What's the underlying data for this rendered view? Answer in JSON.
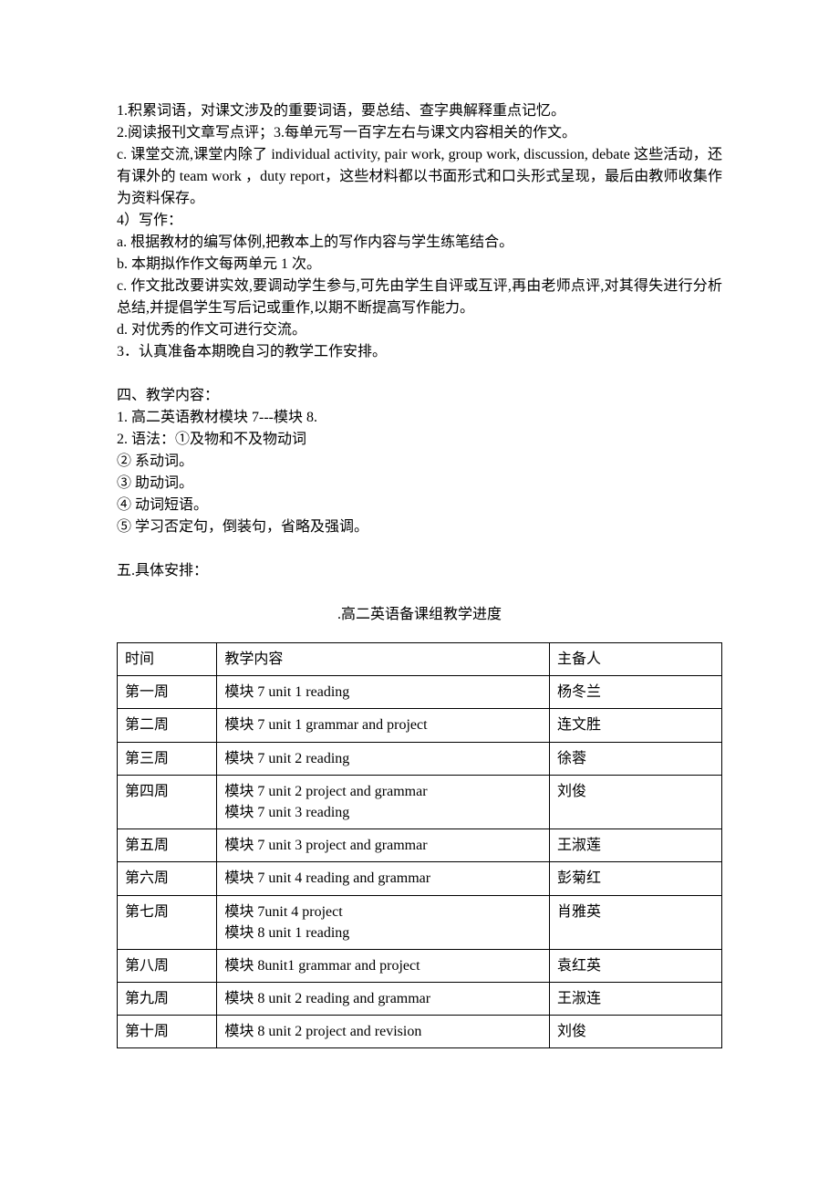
{
  "body": {
    "lines": [
      "1.积累词语，对课文涉及的重要词语，要总结、查字典解释重点记忆。",
      "2.阅读报刊文章写点评；3.每单元写一百字左右与课文内容相关的作文。",
      "c. 课堂交流,课堂内除了 individual activity, pair work, group work, discussion, debate 这些活动，还有课外的 team work ，duty report，这些材料都以书面形式和口头形式呈现，最后由教师收集作为资料保存。",
      "4）写作：",
      "a.  根据教材的编写体例,把教本上的写作内容与学生练笔结合。",
      "b.  本期拟作作文每两单元 1 次。",
      "c.  作文批改要讲实效,要调动学生参与,可先由学生自评或互评,再由老师点评,对其得失进行分析总结,并提倡学生写后记或重作,以期不断提高写作能力。",
      "d.  对优秀的作文可进行交流。",
      "3．认真准备本期晚自习的教学工作安排。"
    ],
    "section4_heading": "四、教学内容：",
    "section4_lines": [
      "1.  高二英语教材模块 7---模块 8.",
      "2.  语法：①及物和不及物动词",
      "②  系动词。",
      "③  助动词。",
      "④  动词短语。",
      "⑤  学习否定句，倒装句，省略及强调。"
    ],
    "section5_heading": "五.具体安排："
  },
  "table": {
    "title": ".高二英语备课组教学进度",
    "headers": [
      "时间",
      "教学内容",
      "主备人"
    ],
    "rows": [
      {
        "time": "第一周",
        "content": "模块 7 unit 1 reading",
        "person": "杨冬兰"
      },
      {
        "time": "第二周",
        "content": "模块 7 unit 1 grammar and project",
        "person": "连文胜"
      },
      {
        "time": "第三周",
        "content": "模块 7 unit 2 reading",
        "person": "徐蓉"
      },
      {
        "time": "第四周",
        "content": "模块 7 unit 2    project and grammar\n模块 7 unit 3    reading",
        "person": "刘俊"
      },
      {
        "time": "第五周",
        "content": "模块 7 unit 3 project and grammar",
        "person": "王淑莲"
      },
      {
        "time": "第六周",
        "content": "模块 7 unit 4 reading and grammar",
        "person": "彭菊红"
      },
      {
        "time": "第七周",
        "content": "模块 7unit 4 project\n模块 8 unit 1    reading",
        "person": "肖雅英"
      },
      {
        "time": "第八周",
        "content": "模块 8unit1 grammar and    project",
        "person": "袁红英"
      },
      {
        "time": "第九周",
        "content": "模块 8 unit 2    reading and grammar",
        "person": "王淑连"
      },
      {
        "time": "第十周",
        "content": "模块 8 unit 2    project and revision",
        "person": "刘俊"
      }
    ]
  }
}
